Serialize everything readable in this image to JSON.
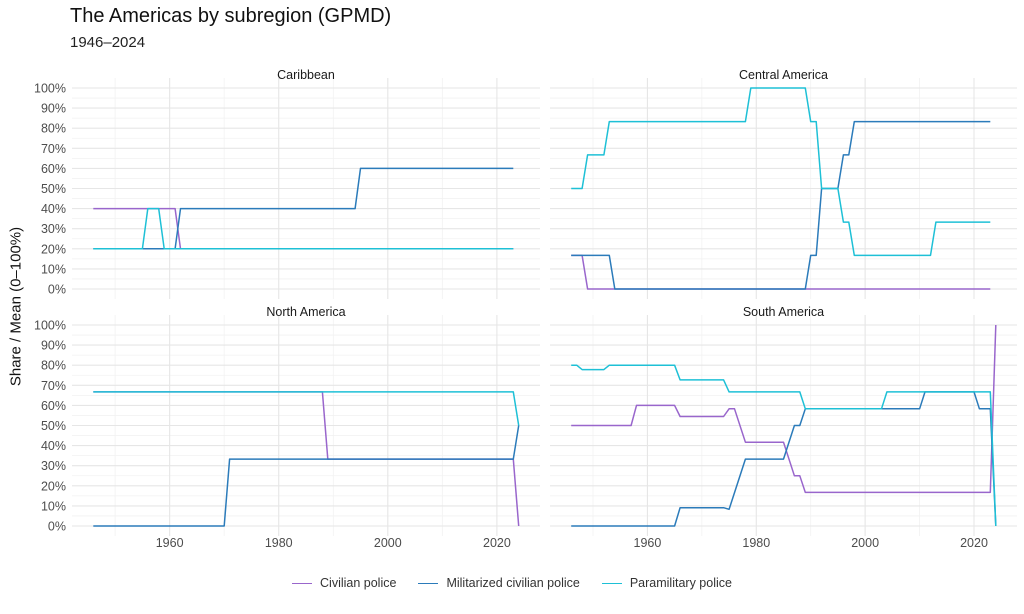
{
  "title": "The Americas by subregion (GPMD)",
  "subtitle": "1946–2024",
  "chart_data": {
    "type": "line",
    "title": "The Americas by subregion (GPMD)",
    "subtitle": "1946–2024",
    "xlabel": "",
    "ylabel": "Share / Mean (0–100%)",
    "xlim": [
      1946,
      2024
    ],
    "ylim": [
      0,
      100
    ],
    "x_ticks": [
      1960,
      1980,
      2000,
      2020
    ],
    "y_ticks": [
      "0%",
      "10%",
      "20%",
      "30%",
      "40%",
      "50%",
      "60%",
      "70%",
      "80%",
      "90%",
      "100%"
    ],
    "grid": true,
    "legend_position": "bottom",
    "legend": [
      {
        "name": "Civilian police",
        "color": "#9966CC"
      },
      {
        "name": "Militarized civilian police",
        "color": "#2B7BBA"
      },
      {
        "name": "Paramilitary police",
        "color": "#1EC0D6"
      }
    ],
    "facets": [
      {
        "name": "Caribbean",
        "series": [
          [
            [
              1946,
              40
            ],
            [
              1961,
              40
            ],
            [
              1962,
              20
            ],
            [
              2023,
              20
            ]
          ],
          [
            [
              1946,
              20
            ],
            [
              1961,
              20
            ],
            [
              1962,
              40
            ],
            [
              1994,
              40
            ],
            [
              1995,
              60
            ],
            [
              2023,
              60
            ]
          ],
          [
            [
              1946,
              20
            ],
            [
              1955,
              20
            ],
            [
              1956,
              40
            ],
            [
              1958,
              40
            ],
            [
              1959,
              20
            ],
            [
              2023,
              20
            ]
          ]
        ]
      },
      {
        "name": "Central America",
        "series": [
          [
            [
              1946,
              16.7
            ],
            [
              1948,
              16.7
            ],
            [
              1949,
              0
            ],
            [
              2023,
              0
            ]
          ],
          [
            [
              1946,
              16.7
            ],
            [
              1953,
              16.7
            ],
            [
              1954,
              0
            ],
            [
              1989,
              0
            ],
            [
              1990,
              16.7
            ],
            [
              1991,
              16.7
            ],
            [
              1992,
              50
            ],
            [
              1995,
              50
            ],
            [
              1996,
              66.7
            ],
            [
              1997,
              66.7
            ],
            [
              1998,
              83.3
            ],
            [
              2023,
              83.3
            ]
          ],
          [
            [
              1946,
              50
            ],
            [
              1948,
              50
            ],
            [
              1949,
              66.7
            ],
            [
              1952,
              66.7
            ],
            [
              1953,
              83.3
            ],
            [
              1978,
              83.3
            ],
            [
              1979,
              100
            ],
            [
              1989,
              100
            ],
            [
              1990,
              83.3
            ],
            [
              1991,
              83.3
            ],
            [
              1992,
              50
            ],
            [
              1995,
              50
            ],
            [
              1996,
              33.3
            ],
            [
              1997,
              33.3
            ],
            [
              1998,
              16.7
            ],
            [
              2012,
              16.7
            ],
            [
              2013,
              33.3
            ],
            [
              2023,
              33.3
            ]
          ]
        ]
      },
      {
        "name": "North America",
        "series": [
          [
            [
              1946,
              66.7
            ],
            [
              1988,
              66.7
            ],
            [
              1989,
              33.3
            ],
            [
              2023,
              33.3
            ],
            [
              2024,
              0
            ]
          ],
          [
            [
              1946,
              0
            ],
            [
              1970,
              0
            ],
            [
              1971,
              33.3
            ],
            [
              2023,
              33.3
            ],
            [
              2024,
              50
            ]
          ],
          [
            [
              1946,
              66.7
            ],
            [
              2023,
              66.7
            ],
            [
              2024,
              50
            ]
          ]
        ]
      },
      {
        "name": "South America",
        "series": [
          [
            [
              1946,
              50
            ],
            [
              1957,
              50
            ],
            [
              1958,
              60
            ],
            [
              1965,
              60
            ],
            [
              1966,
              54.5
            ],
            [
              1974,
              54.5
            ],
            [
              1975,
              58.3
            ],
            [
              1976,
              58.3
            ],
            [
              1978,
              41.7
            ],
            [
              1985,
              41.7
            ],
            [
              1987,
              25
            ],
            [
              1988,
              25
            ],
            [
              1989,
              16.7
            ],
            [
              2023,
              16.7
            ],
            [
              2024,
              100
            ]
          ],
          [
            [
              1946,
              0
            ],
            [
              1965,
              0
            ],
            [
              1966,
              9.1
            ],
            [
              1974,
              9.1
            ],
            [
              1975,
              8.3
            ],
            [
              1978,
              33.3
            ],
            [
              1985,
              33.3
            ],
            [
              1987,
              50
            ],
            [
              1988,
              50
            ],
            [
              1989,
              58.3
            ],
            [
              2010,
              58.3
            ],
            [
              2011,
              66.7
            ],
            [
              2020,
              66.7
            ],
            [
              2021,
              58.3
            ],
            [
              2023,
              58.3
            ],
            [
              2024,
              0
            ]
          ],
          [
            [
              1946,
              80
            ],
            [
              1947,
              80
            ],
            [
              1948,
              77.8
            ],
            [
              1952,
              77.8
            ],
            [
              1953,
              80
            ],
            [
              1965,
              80
            ],
            [
              1966,
              72.7
            ],
            [
              1974,
              72.7
            ],
            [
              1975,
              66.7
            ],
            [
              1988,
              66.7
            ],
            [
              1989,
              58.3
            ],
            [
              2003,
              58.3
            ],
            [
              2004,
              66.7
            ],
            [
              2023,
              66.7
            ],
            [
              2024,
              0
            ]
          ]
        ]
      }
    ]
  }
}
